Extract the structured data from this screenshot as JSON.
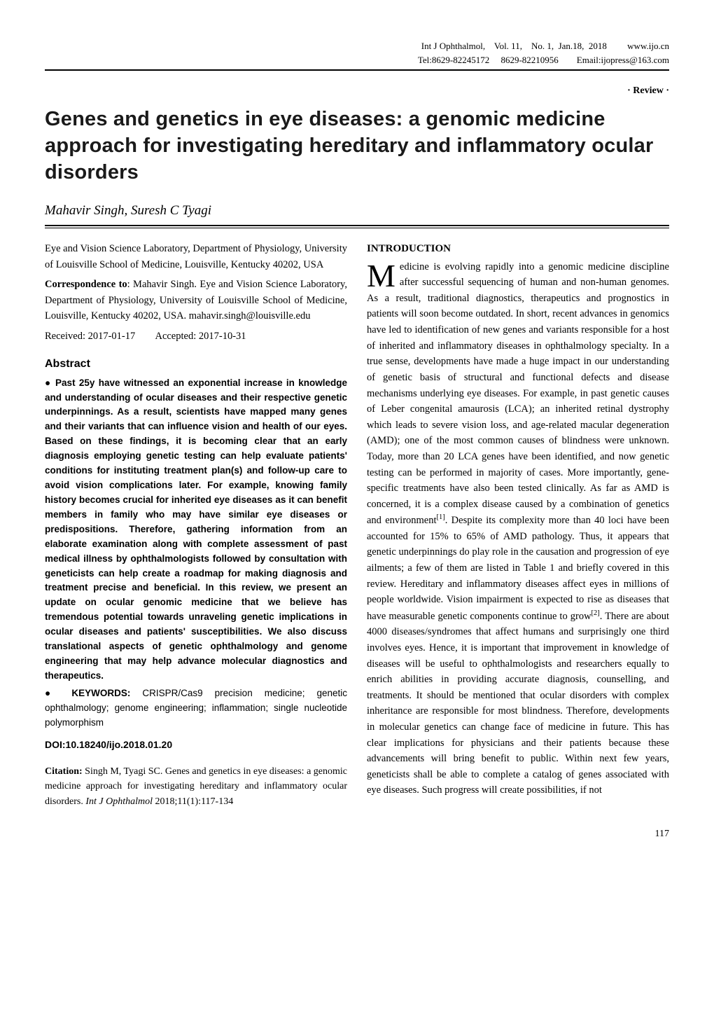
{
  "header": {
    "line1_left": "Int J Ophthalmol,",
    "line1_mid": "Vol. 11,    No. 1,  Jan.18,  2018",
    "line1_right": "www.ijo.cn",
    "line2_left": "Tel:8629-82245172     8629-82210956",
    "line2_right": "Email:ijopress@163.com"
  },
  "review_tag": "· Review ·",
  "title": "Genes and genetics in eye diseases: a genomic medicine approach for investigating hereditary and inflammatory ocular disorders",
  "authors": "Mahavir Singh, Suresh C Tyagi",
  "affiliation": "Eye and Vision Science Laboratory, Department of Physiology, University of Louisville School of Medicine, Louisville, Kentucky 40202, USA",
  "correspondence_label": "Correspondence to",
  "correspondence_text": ": Mahavir Singh. Eye and Vision Science Laboratory, Department of Physiology, University of Louisville School of Medicine, Louisville, Kentucky 40202, USA. mahavir.singh@louisville.edu",
  "received": "Received: 2017-01-17",
  "accepted": "Accepted: 2017-10-31",
  "abstract_head": "Abstract",
  "abstract_body": "● Past 25y have witnessed an exponential increase in knowledge and understanding of ocular diseases and their respective genetic underpinnings. As a result, scientists have mapped many genes and their variants that can influence vision and health of our eyes. Based on these findings, it is becoming clear that an early diagnosis employing genetic testing can help evaluate patients' conditions for instituting treatment plan(s) and follow-up care to avoid vision complications later. For example, knowing family history becomes crucial for inherited eye diseases as it can benefit members in family who may have similar eye diseases or predispositions. Therefore, gathering information from an elaborate examination along with complete assessment of past medical illness by ophthalmologists followed by consultation with geneticists can help create a roadmap for making diagnosis and treatment precise and beneficial. In this review, we present an update on ocular genomic medicine that we believe has tremendous potential towards unraveling genetic implications in ocular diseases and patients' susceptibilities. We also discuss translational aspects of genetic ophthalmology and genome engineering that may help advance molecular diagnostics and therapeutics.",
  "keywords_label": "● KEYWORDS:",
  "keywords_text": " CRISPR/Cas9 precision medicine; genetic ophthalmology; genome engineering; inflammation; single nucleotide polymorphism",
  "doi": "DOI:10.18240/ijo.2018.01.20",
  "citation_label": "Citation:",
  "citation_rest": " Singh M, Tyagi SC. Genes and genetics in eye diseases: a genomic medicine approach for investigating hereditary and inflammatory ocular disorders.  ",
  "citation_journal": "Int J Ophthalmol",
  "citation_loc": "  2018;11(1):117-134",
  "intro_head": "INTRODUCTION",
  "dropcap": "M",
  "intro_body_after_cap": "edicine is evolving rapidly into a genomic medicine discipline after successful sequencing of human and non-human genomes. As a result, traditional diagnostics, therapeutics and prognostics in patients will soon become outdated. In short, recent advances in genomics have led to identification of new genes and variants responsible for a host of inherited and inflammatory diseases in ophthalmology specialty. In a true sense, developments have made a huge impact in our understanding of genetic basis of structural and functional defects and disease mechanisms underlying eye diseases. For example, in past genetic causes of Leber congenital amaurosis (LCA); an inherited retinal dystrophy which leads to severe vision loss, and age-related macular degeneration (AMD); one of the most common causes of blindness were unknown. Today, more than 20 LCA genes have been identified, and now genetic testing can be performed in majority of cases. More importantly, gene-specific treatments have also been tested clinically. As far as AMD is concerned, it is a complex disease caused by a combination of genetics and environment",
  "sup1": "[1]",
  "intro_body_mid": ". Despite its complexity more than 40 loci have been accounted for 15% to 65% of AMD pathology. Thus, it appears that genetic underpinnings do play role in the causation and progression of eye ailments; a few of them are listed in Table 1 and briefly covered in this review. Hereditary and inflammatory diseases affect eyes in millions of people worldwide. Vision impairment is expected to rise as diseases that have measurable genetic components continue to grow",
  "sup2": "[2]",
  "intro_body_end": ". There are about 4000 diseases/syndromes that affect humans and surprisingly one third involves eyes. Hence, it is important that improvement in knowledge of diseases will be useful to ophthalmologists and researchers equally to enrich abilities in providing accurate diagnosis, counselling, and treatments. It should be mentioned that ocular disorders with complex inheritance are responsible for most blindness. Therefore, developments in molecular genetics can change face of medicine in future. This has clear implications for physicians and their patients because these advancements will bring benefit to public. Within next few years, geneticists shall be able to complete a catalog of genes associated with eye diseases. Such progress will create possibilities, if not",
  "page_number": "117",
  "colors": {
    "text": "#000000",
    "background": "#ffffff",
    "rule": "#000000"
  }
}
